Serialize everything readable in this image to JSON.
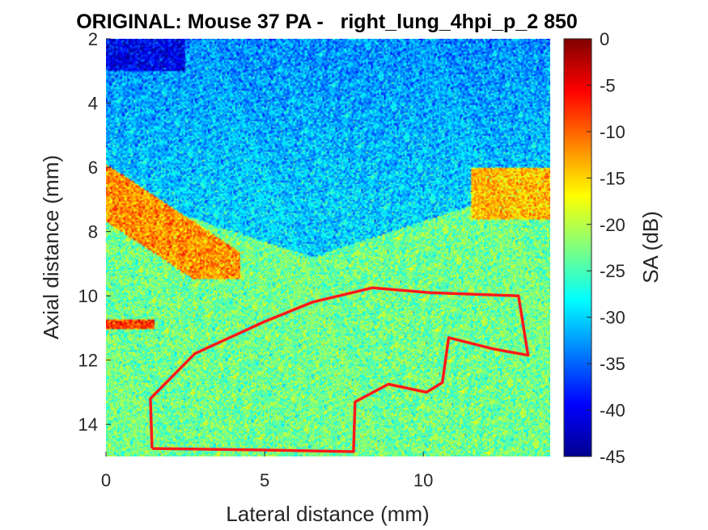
{
  "chart_data": {
    "type": "heatmap",
    "title": "ORIGINAL: Mouse 37 PA -   right_lung_4hpi_p_2 850",
    "xlabel": "Lateral distance (mm)",
    "ylabel": "Axial distance (mm)",
    "xlim": [
      0,
      14
    ],
    "ylim": [
      15,
      2
    ],
    "y_reversed": true,
    "xticks": [
      0,
      5,
      10
    ],
    "yticks": [
      2,
      4,
      6,
      8,
      10,
      12,
      14
    ],
    "colorbar": {
      "label": "SA (dB)",
      "limits": [
        -45,
        0
      ],
      "ticks": [
        0,
        -5,
        -10,
        -15,
        -20,
        -25,
        -30,
        -35,
        -40,
        -45
      ],
      "colormap": "jet"
    },
    "roi": {
      "color": "#ff1a1a",
      "points": [
        [
          1.45,
          14.75
        ],
        [
          1.4,
          13.2
        ],
        [
          2.8,
          11.8
        ],
        [
          5.0,
          10.8
        ],
        [
          6.5,
          10.2
        ],
        [
          8.4,
          9.75
        ],
        [
          10.2,
          9.9
        ],
        [
          13.0,
          10.0
        ],
        [
          13.3,
          11.85
        ],
        [
          12.2,
          11.65
        ],
        [
          10.8,
          11.3
        ],
        [
          10.6,
          12.7
        ],
        [
          10.1,
          13.0
        ],
        [
          8.9,
          12.75
        ],
        [
          7.85,
          13.3
        ],
        [
          7.8,
          14.85
        ],
        [
          5.0,
          14.8
        ],
        [
          1.45,
          14.75
        ]
      ]
    }
  }
}
